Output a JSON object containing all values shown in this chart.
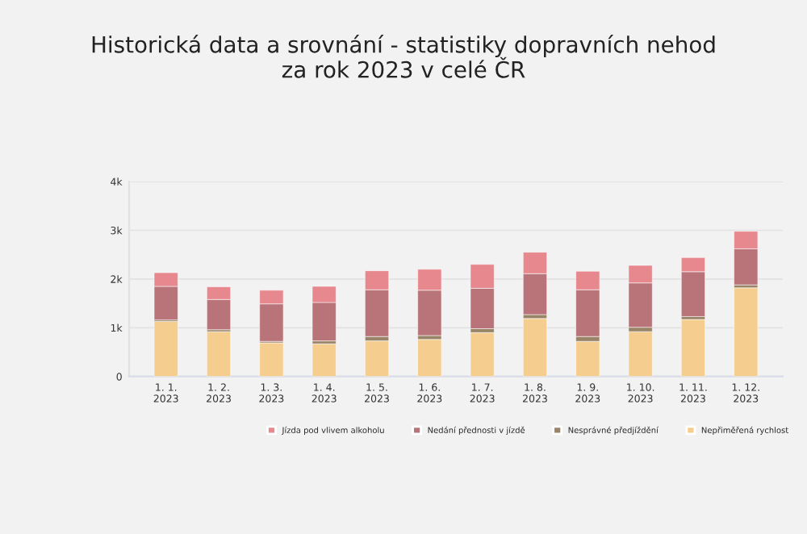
{
  "chart_data": {
    "type": "bar",
    "title": "Historická data a srovnání - statistiky dopravních nehod\nza rok 2023 v celé ČR",
    "categories": [
      "1. 1.\n2023",
      "1. 2.\n2023",
      "1. 3.\n2023",
      "1. 4.\n2023",
      "1. 5.\n2023",
      "1. 6.\n2023",
      "1. 7.\n2023",
      "1. 8.\n2023",
      "1. 9.\n2023",
      "1. 10.\n2023",
      "1. 11.\n2023",
      "1. 12.\n2023"
    ],
    "stacked": true,
    "series": [
      {
        "name": "Nepřiměřená rychlost",
        "color": "#f5cd8e",
        "values": [
          1130,
          920,
          690,
          670,
          730,
          760,
          900,
          1190,
          720,
          920,
          1170,
          1820
        ]
      },
      {
        "name": "Nesprávné předjíždění",
        "color": "#9a8468",
        "values": [
          30,
          40,
          30,
          60,
          90,
          80,
          80,
          80,
          100,
          90,
          60,
          60
        ]
      },
      {
        "name": "Nedání přednosti v jízdě",
        "color": "#b87478",
        "values": [
          690,
          620,
          770,
          790,
          960,
          930,
          830,
          840,
          960,
          910,
          920,
          740
        ]
      },
      {
        "name": "Jízda pod vlivem alkoholu",
        "color": "#e6888e",
        "values": [
          280,
          260,
          280,
          330,
          390,
          430,
          490,
          440,
          380,
          360,
          290,
          360
        ]
      }
    ],
    "ylim": [
      0,
      4000
    ],
    "yticks": [
      0,
      {
        "value": 1000,
        "label": "1k"
      },
      {
        "value": 2000,
        "label": "2k"
      },
      {
        "value": 3000,
        "label": "3k"
      },
      {
        "value": 4000,
        "label": "4k"
      }
    ],
    "grid": "y",
    "legend": "bottom right"
  }
}
